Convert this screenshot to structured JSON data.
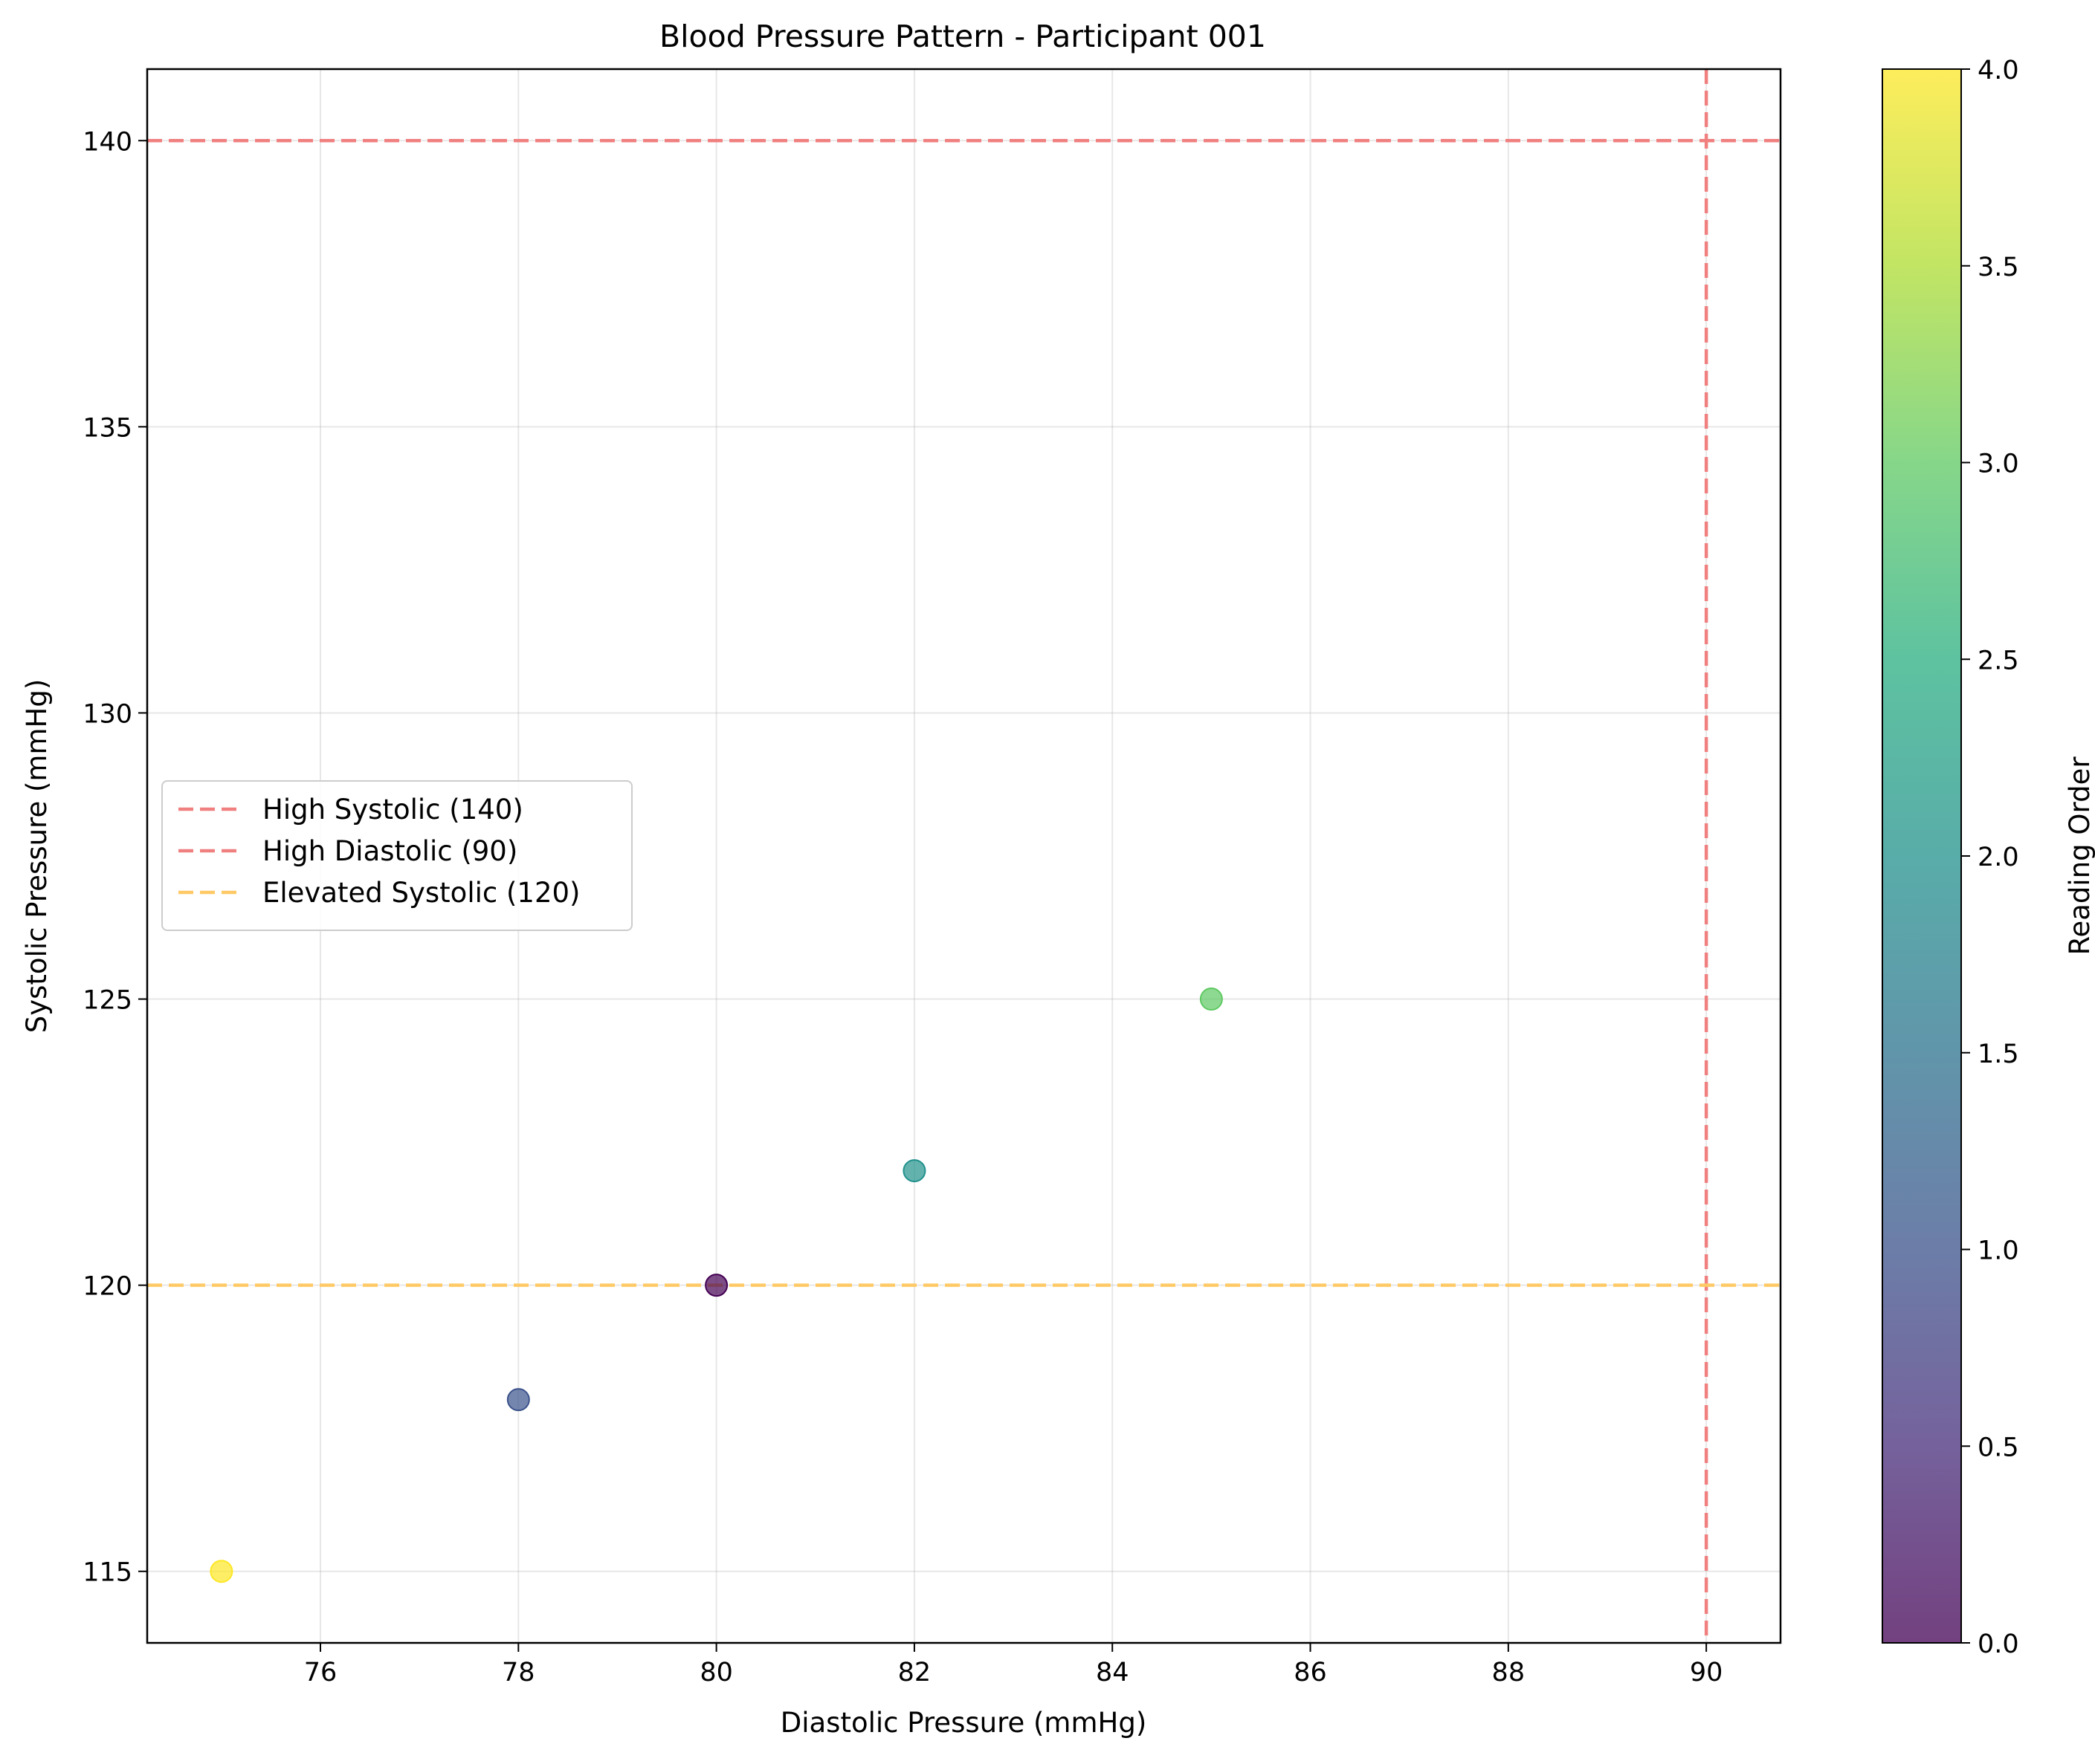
{
  "chart_data": {
    "type": "scatter",
    "title": "Blood Pressure Pattern - Participant 001",
    "xlabel": "Diastolic Pressure (mmHg)",
    "ylabel": "Systolic Pressure (mmHg)",
    "xlim": [
      74.25,
      90.75
    ],
    "ylim": [
      113.75,
      141.25
    ],
    "xticks": [
      76,
      78,
      80,
      82,
      84,
      86,
      88,
      90
    ],
    "yticks": [
      115,
      120,
      125,
      130,
      135,
      140
    ],
    "grid": true,
    "points": [
      {
        "x": 80,
        "y": 120,
        "order": 0
      },
      {
        "x": 78,
        "y": 118,
        "order": 1
      },
      {
        "x": 82,
        "y": 122,
        "order": 2
      },
      {
        "x": 85,
        "y": 125,
        "order": 3
      },
      {
        "x": 75,
        "y": 115,
        "order": 4
      }
    ],
    "reference_lines": [
      {
        "orientation": "horizontal",
        "value": 140,
        "label": "High Systolic (140)",
        "color": "#f08080"
      },
      {
        "orientation": "vertical",
        "value": 90,
        "label": "High Diastolic (90)",
        "color": "#f08080"
      },
      {
        "orientation": "horizontal",
        "value": 120,
        "label": "Elevated Systolic (120)",
        "color": "#ffc966"
      }
    ],
    "legend_position": "center-left",
    "colorbar": {
      "label": "Reading Order",
      "colormap": "viridis",
      "range": [
        0.0,
        4.0
      ],
      "ticks": [
        "0.0",
        "0.5",
        "1.0",
        "1.5",
        "2.0",
        "2.5",
        "3.0",
        "3.5",
        "4.0"
      ]
    }
  }
}
